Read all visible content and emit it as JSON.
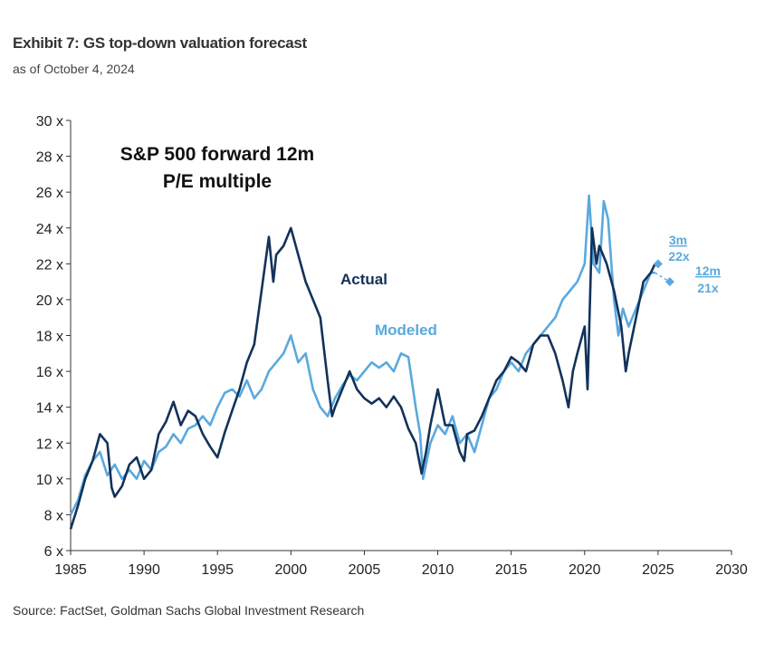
{
  "header": {
    "title": "Exhibit 7: GS top-down valuation forecast",
    "subtitle": "as of October 4, 2024"
  },
  "footer": {
    "source": "Source: FactSet, Goldman Sachs Global Investment Research"
  },
  "colors": {
    "actual": "#12325a",
    "modeled": "#5aa9de",
    "axis": "#333333"
  },
  "chart_data": {
    "type": "line",
    "title_line1": "S&P 500 forward  12m",
    "title_line2": "P/E multiple",
    "xlim": [
      1985,
      2030
    ],
    "ylim": [
      6,
      30
    ],
    "x_ticks": [
      1985,
      1990,
      1995,
      2000,
      2005,
      2010,
      2015,
      2020,
      2025,
      2030
    ],
    "y_ticks": [
      6,
      8,
      10,
      12,
      14,
      16,
      18,
      20,
      22,
      24,
      26,
      28,
      30
    ],
    "y_tick_labels": [
      "6 x",
      "8 x",
      "10 x",
      "12 x",
      "14 x",
      "16 x",
      "18 x",
      "20 x",
      "22 x",
      "24 x",
      "26 x",
      "28 x",
      "30 x"
    ],
    "grid": false,
    "series": [
      {
        "name": "Actual",
        "x": [
          1985.0,
          1985.5,
          1986.0,
          1986.5,
          1987.0,
          1987.5,
          1987.8,
          1988.0,
          1988.5,
          1989.0,
          1989.5,
          1990.0,
          1990.5,
          1991.0,
          1991.5,
          1992.0,
          1992.5,
          1993.0,
          1993.5,
          1994.0,
          1994.5,
          1995.0,
          1995.5,
          1996.0,
          1996.5,
          1997.0,
          1997.5,
          1998.0,
          1998.5,
          1998.8,
          1999.0,
          1999.5,
          2000.0,
          2000.5,
          2001.0,
          2001.5,
          2002.0,
          2002.5,
          2002.8,
          2003.0,
          2003.5,
          2004.0,
          2004.5,
          2005.0,
          2005.5,
          2006.0,
          2006.5,
          2007.0,
          2007.5,
          2008.0,
          2008.5,
          2008.9,
          2009.2,
          2009.5,
          2010.0,
          2010.5,
          2011.0,
          2011.5,
          2011.8,
          2012.0,
          2012.5,
          2013.0,
          2013.5,
          2014.0,
          2014.5,
          2015.0,
          2015.5,
          2016.0,
          2016.5,
          2017.0,
          2017.5,
          2018.0,
          2018.5,
          2018.9,
          2019.2,
          2019.5,
          2020.0,
          2020.2,
          2020.5,
          2020.8,
          2021.0,
          2021.5,
          2022.0,
          2022.5,
          2022.8,
          2023.0,
          2023.5,
          2024.0,
          2024.5,
          2024.8
        ],
        "values": [
          7.2,
          8.5,
          10.0,
          11.0,
          12.5,
          12.0,
          9.5,
          9.0,
          9.6,
          10.8,
          11.2,
          10.0,
          10.5,
          12.5,
          13.2,
          14.3,
          13.0,
          13.8,
          13.5,
          12.5,
          11.8,
          11.2,
          12.6,
          13.8,
          15.0,
          16.5,
          17.5,
          20.5,
          23.5,
          21.0,
          22.5,
          23.0,
          24.0,
          22.5,
          21.0,
          20.0,
          19.0,
          15.5,
          13.5,
          14.0,
          15.0,
          16.0,
          15.0,
          14.5,
          14.2,
          14.5,
          14.0,
          14.6,
          14.0,
          12.8,
          12.0,
          10.3,
          11.5,
          13.0,
          15.0,
          13.0,
          13.0,
          11.5,
          11.0,
          12.5,
          12.7,
          13.5,
          14.5,
          15.5,
          16.0,
          16.8,
          16.5,
          16.0,
          17.5,
          18.0,
          18.0,
          17.0,
          15.5,
          14.0,
          16.0,
          17.0,
          18.5,
          15.0,
          24.0,
          22.0,
          23.0,
          22.0,
          20.5,
          18.5,
          16.0,
          17.0,
          19.0,
          21.0,
          21.5,
          22.0
        ]
      },
      {
        "name": "Modeled",
        "x": [
          1985.0,
          1985.5,
          1986.0,
          1986.5,
          1987.0,
          1987.5,
          1988.0,
          1988.5,
          1989.0,
          1989.5,
          1990.0,
          1990.5,
          1991.0,
          1991.5,
          1992.0,
          1992.5,
          1993.0,
          1993.5,
          1994.0,
          1994.5,
          1995.0,
          1995.5,
          1996.0,
          1996.5,
          1997.0,
          1997.5,
          1998.0,
          1998.5,
          1999.0,
          1999.5,
          2000.0,
          2000.5,
          2001.0,
          2001.5,
          2002.0,
          2002.5,
          2003.0,
          2003.5,
          2004.0,
          2004.5,
          2005.0,
          2005.5,
          2006.0,
          2006.5,
          2007.0,
          2007.5,
          2008.0,
          2008.5,
          2008.8,
          2009.0,
          2009.5,
          2010.0,
          2010.5,
          2011.0,
          2011.5,
          2012.0,
          2012.5,
          2013.0,
          2013.5,
          2014.0,
          2014.5,
          2015.0,
          2015.5,
          2016.0,
          2016.5,
          2017.0,
          2017.5,
          2018.0,
          2018.5,
          2019.0,
          2019.5,
          2020.0,
          2020.3,
          2020.6,
          2021.0,
          2021.3,
          2021.6,
          2022.0,
          2022.3,
          2022.6,
          2023.0,
          2023.5,
          2024.0,
          2024.5,
          2024.8
        ],
        "values": [
          8.0,
          8.8,
          10.2,
          11.0,
          11.5,
          10.2,
          10.8,
          10.0,
          10.5,
          10.0,
          11.0,
          10.5,
          11.5,
          11.8,
          12.5,
          12.0,
          12.8,
          13.0,
          13.5,
          13.0,
          14.0,
          14.8,
          15.0,
          14.6,
          15.5,
          14.5,
          15.0,
          16.0,
          16.5,
          17.0,
          18.0,
          16.5,
          17.0,
          15.0,
          14.0,
          13.5,
          14.5,
          15.2,
          15.8,
          15.5,
          16.0,
          16.5,
          16.2,
          16.5,
          16.0,
          17.0,
          16.8,
          14.0,
          12.5,
          10.0,
          12.0,
          13.0,
          12.5,
          13.5,
          12.0,
          12.5,
          11.5,
          13.0,
          14.5,
          15.0,
          16.0,
          16.5,
          16.0,
          17.0,
          17.5,
          18.0,
          18.5,
          19.0,
          20.0,
          20.5,
          21.0,
          22.0,
          25.8,
          22.0,
          21.5,
          25.5,
          24.5,
          20.0,
          18.0,
          19.5,
          18.5,
          19.5,
          20.5,
          21.5,
          21.5
        ]
      }
    ],
    "series_labels": [
      "Actual",
      "Modeled"
    ],
    "forecast": [
      {
        "label": "3m",
        "value_label": "22x",
        "x": 2025.0,
        "y": 22
      },
      {
        "label": "12m",
        "value_label": "21x",
        "x": 2025.8,
        "y": 21
      }
    ]
  }
}
